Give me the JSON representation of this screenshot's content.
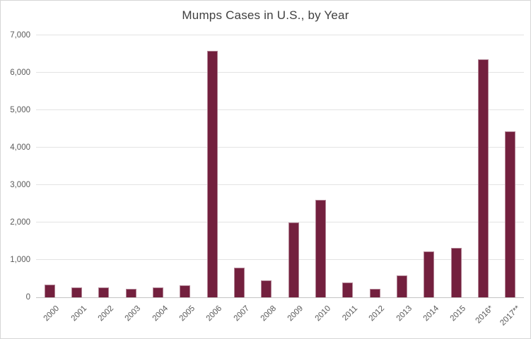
{
  "frame": {
    "background": "#ffffff",
    "border_color": "#d6d6d6"
  },
  "chart_data": {
    "type": "bar",
    "title": "Mumps Cases in U.S., by Year",
    "xlabel": "",
    "ylabel": "",
    "categories": [
      "2000",
      "2001",
      "2002",
      "2003",
      "2004",
      "2005",
      "2006",
      "2007",
      "2008",
      "2009",
      "2010",
      "2011",
      "2012",
      "2013",
      "2014",
      "2015",
      "2016*",
      "2017**"
    ],
    "values": [
      338,
      266,
      270,
      231,
      258,
      314,
      6584,
      800,
      454,
      1991,
      2612,
      404,
      229,
      584,
      1223,
      1329,
      6366,
      4442
    ],
    "ylim": [
      0,
      7000
    ],
    "ytick_step": 1000,
    "ytick_labels": [
      "0",
      "1,000",
      "2,000",
      "3,000",
      "4,000",
      "5,000",
      "6,000",
      "7,000"
    ],
    "grid": "horizontal",
    "legend": "none",
    "bar_color": "#73203E",
    "gridline_color": "#e3e3e3",
    "axis_line_color": "#c4c4c4",
    "label_color": "#595959",
    "title_color": "#404040"
  }
}
